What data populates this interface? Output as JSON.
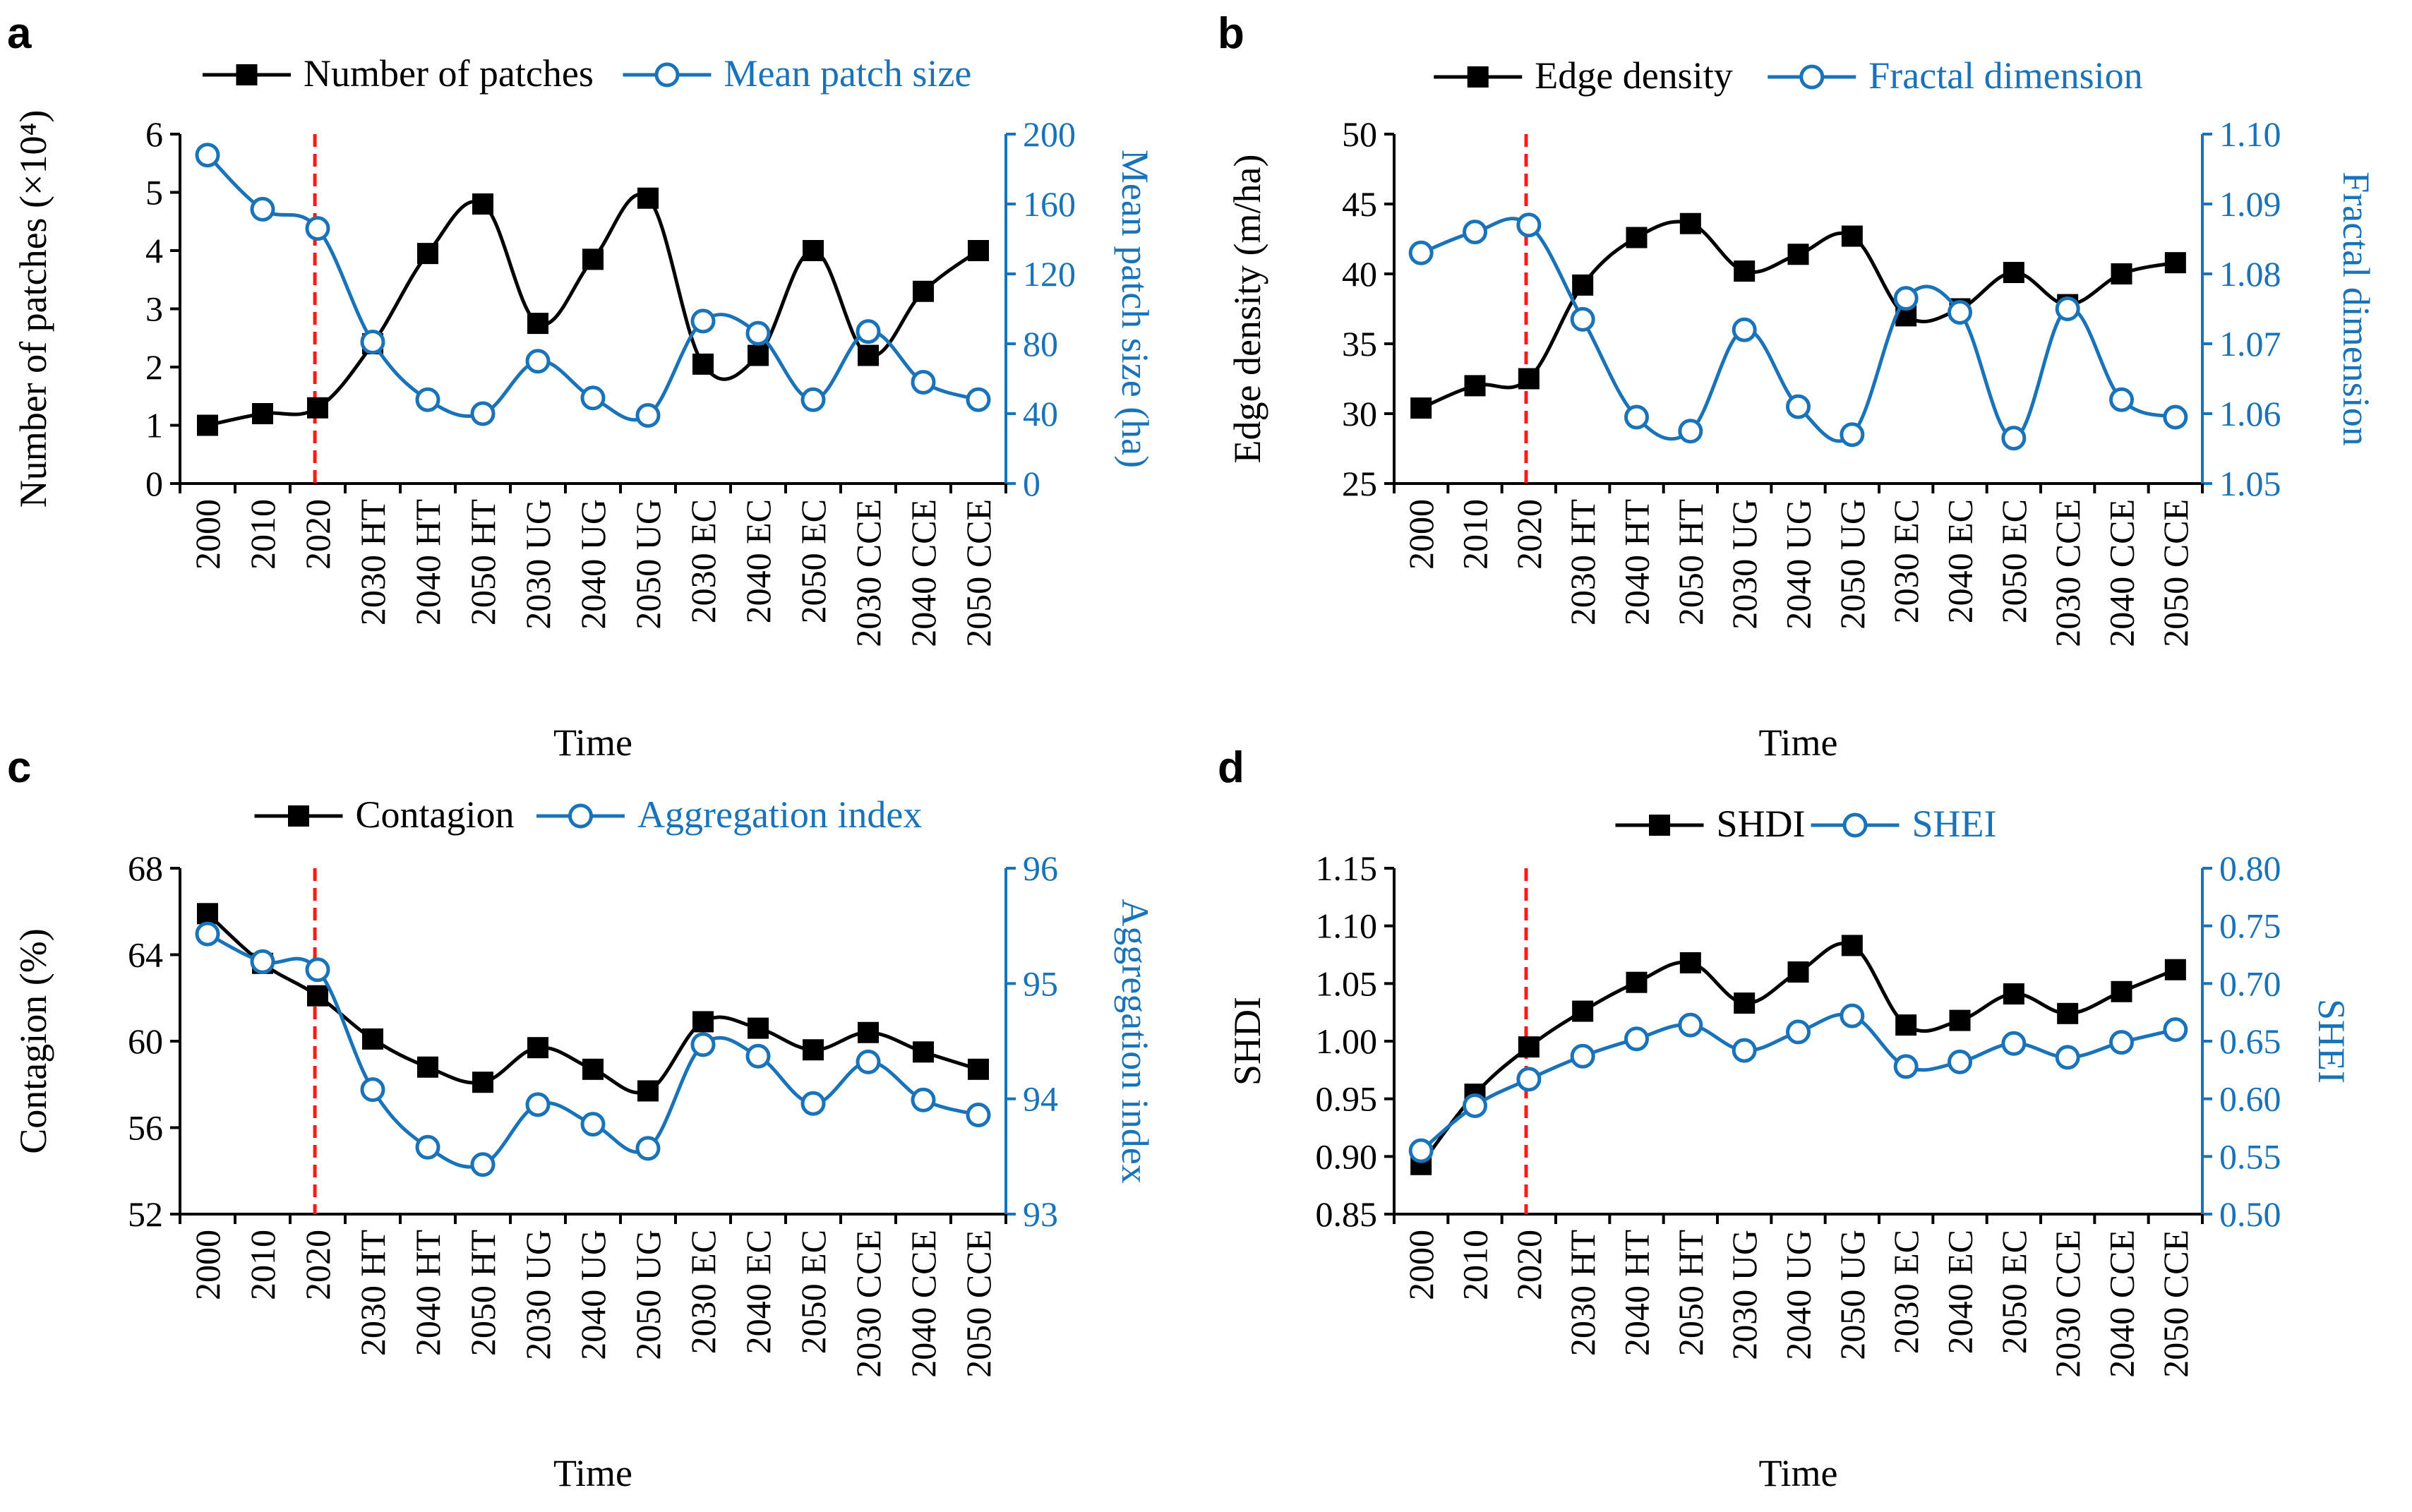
{
  "colors": {
    "primary": "#000000",
    "secondary": "#1a73b8",
    "reference_line": "#ff1a1a"
  },
  "chart_data": [
    {
      "id": "a",
      "type": "line",
      "panel_label": "a",
      "xlabel": "Time",
      "categories": [
        "2000",
        "2010",
        "2020",
        "2030 HT",
        "2040 HT",
        "2050 HT",
        "2030 UG",
        "2040 UG",
        "2050 UG",
        "2030 EC",
        "2040 EC",
        "2050 EC",
        "2030 CCE",
        "2040 CCE",
        "2050 CCE"
      ],
      "reference_line_after": "2020",
      "left_axis": {
        "label": "Number of patches (×10⁴)",
        "ylim": [
          0,
          6
        ],
        "ticks": [
          "0",
          "1",
          "2",
          "3",
          "4",
          "5",
          "6"
        ]
      },
      "right_axis": {
        "label": "Mean patch size (ha)",
        "ylim": [
          0,
          200
        ],
        "ticks": [
          "0",
          "40",
          "80",
          "120",
          "160",
          "200"
        ]
      },
      "series": [
        {
          "name": "Number of patches",
          "axis": "left",
          "marker": "square",
          "values": [
            1.0,
            1.2,
            1.3,
            2.4,
            3.95,
            4.8,
            2.75,
            3.85,
            4.9,
            2.05,
            2.2,
            4.0,
            2.2,
            3.3,
            4.0
          ]
        },
        {
          "name": "Mean patch size",
          "axis": "right",
          "marker": "circle",
          "values": [
            188,
            157,
            146,
            81,
            48,
            40,
            70,
            49,
            39,
            93,
            86,
            48,
            87,
            58,
            48
          ]
        }
      ]
    },
    {
      "id": "b",
      "type": "line",
      "panel_label": "b",
      "xlabel": "Time",
      "categories": [
        "2000",
        "2010",
        "2020",
        "2030 HT",
        "2040 HT",
        "2050 HT",
        "2030 UG",
        "2040 UG",
        "2050 UG",
        "2030 EC",
        "2040 EC",
        "2050 EC",
        "2030 CCE",
        "2040 CCE",
        "2050 CCE"
      ],
      "reference_line_after": "2020",
      "left_axis": {
        "label": "Edge density (m/ha)",
        "ylim": [
          25,
          50
        ],
        "ticks": [
          "25",
          "30",
          "35",
          "40",
          "45",
          "50"
        ]
      },
      "right_axis": {
        "label": "Fractal dimension",
        "ylim": [
          1.05,
          1.1
        ],
        "ticks": [
          "1.05",
          "1.06",
          "1.07",
          "1.08",
          "1.09",
          "1.10"
        ]
      },
      "series": [
        {
          "name": "Edge density",
          "axis": "left",
          "marker": "square",
          "values": [
            30.4,
            32.0,
            32.5,
            39.2,
            42.6,
            43.6,
            40.2,
            41.4,
            42.7,
            37.0,
            37.5,
            40.1,
            37.8,
            40.0,
            40.8
          ]
        },
        {
          "name": "Fractal dimension",
          "axis": "right",
          "marker": "circle",
          "values": [
            1.083,
            1.086,
            1.087,
            1.0735,
            1.0595,
            1.0575,
            1.072,
            1.061,
            1.057,
            1.0765,
            1.0745,
            1.0565,
            1.075,
            1.062,
            1.0595
          ]
        }
      ]
    },
    {
      "id": "c",
      "type": "line",
      "panel_label": "c",
      "xlabel": "Time",
      "categories": [
        "2000",
        "2010",
        "2020",
        "2030 HT",
        "2040 HT",
        "2050 HT",
        "2030 UG",
        "2040 UG",
        "2050 UG",
        "2030 EC",
        "2040 EC",
        "2050 EC",
        "2030 CCE",
        "2040 CCE",
        "2050 CCE"
      ],
      "reference_line_after": "2020",
      "left_axis": {
        "label": "Contagion (%)",
        "ylim": [
          52,
          68
        ],
        "ticks": [
          "52",
          "56",
          "60",
          "64",
          "68"
        ]
      },
      "right_axis": {
        "label": "Aggregation index",
        "ylim": [
          93,
          96
        ],
        "ticks": [
          "93",
          "94",
          "95",
          "96"
        ]
      },
      "series": [
        {
          "name": "Contagion",
          "axis": "left",
          "marker": "square",
          "values": [
            65.9,
            63.6,
            62.1,
            60.1,
            58.8,
            58.1,
            59.7,
            58.7,
            57.7,
            60.9,
            60.6,
            59.6,
            60.4,
            59.5,
            58.7
          ]
        },
        {
          "name": "Aggregation index",
          "axis": "right",
          "marker": "circle",
          "values": [
            95.43,
            95.19,
            95.12,
            94.08,
            93.58,
            93.43,
            93.95,
            93.78,
            93.57,
            94.47,
            94.37,
            93.96,
            94.32,
            93.99,
            93.86
          ]
        }
      ]
    },
    {
      "id": "d",
      "type": "line",
      "panel_label": "d",
      "xlabel": "Time",
      "categories": [
        "2000",
        "2010",
        "2020",
        "2030 HT",
        "2040 HT",
        "2050 HT",
        "2030 UG",
        "2040 UG",
        "2050 UG",
        "2030 EC",
        "2040 EC",
        "2050 EC",
        "2030 CCE",
        "2040 CCE",
        "2050 CCE"
      ],
      "reference_line_after": "2020",
      "left_axis": {
        "label": "SHDI",
        "ylim": [
          0.85,
          1.15
        ],
        "ticks": [
          "0.85",
          "0.90",
          "0.95",
          "1.00",
          "1.05",
          "1.10",
          "1.15"
        ]
      },
      "right_axis": {
        "label": "SHEI",
        "ylim": [
          0.5,
          0.8
        ],
        "ticks": [
          "0.50",
          "0.55",
          "0.60",
          "0.65",
          "0.70",
          "0.75",
          "0.80"
        ]
      },
      "series": [
        {
          "name": "SHDI",
          "axis": "left",
          "marker": "square",
          "values": [
            0.893,
            0.954,
            0.995,
            1.026,
            1.051,
            1.068,
            1.033,
            1.06,
            1.083,
            1.014,
            1.018,
            1.041,
            1.024,
            1.043,
            1.062
          ]
        },
        {
          "name": "SHEI",
          "axis": "right",
          "marker": "circle",
          "values": [
            0.555,
            0.594,
            0.617,
            0.637,
            0.652,
            0.664,
            0.642,
            0.658,
            0.672,
            0.628,
            0.632,
            0.648,
            0.636,
            0.649,
            0.66
          ]
        }
      ]
    }
  ]
}
